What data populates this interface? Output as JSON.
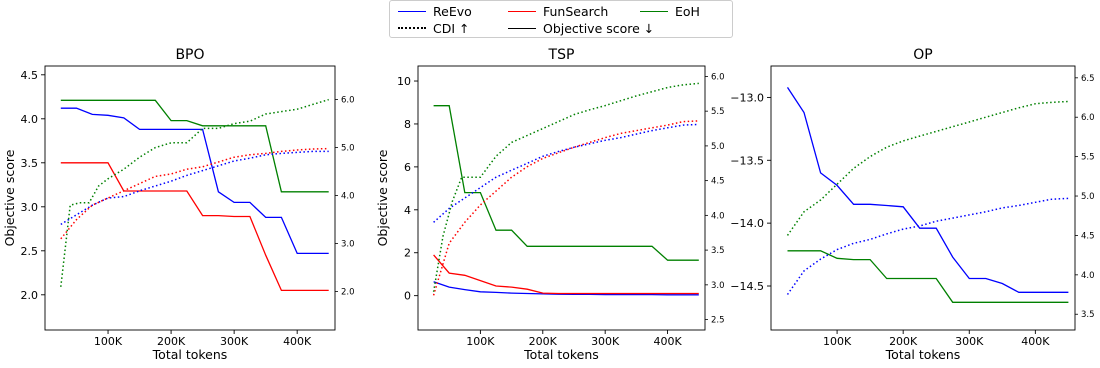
{
  "legend": {
    "entries": [
      {
        "label": "ReEvo",
        "style": "solid",
        "color": "#0000ff"
      },
      {
        "label": "CDI ↑",
        "style": "dotted",
        "color": "#000000"
      },
      {
        "label": "FunSearch",
        "style": "solid",
        "color": "#ff0000"
      },
      {
        "label": "Objective score ↓",
        "style": "solid",
        "color": "#000000"
      },
      {
        "label": "EoH",
        "style": "solid",
        "color": "#008000"
      }
    ]
  },
  "colors": {
    "ReEvo": "#0000ff",
    "FunSearch": "#ff0000",
    "EoH": "#008000"
  },
  "chart_data": [
    {
      "type": "line",
      "title": "BPO",
      "xlabel": "Total tokens",
      "ylabel": "Objective score",
      "xlim": [
        0,
        460000
      ],
      "ylim": [
        1.6,
        4.6
      ],
      "y2lim": [
        1.2,
        6.7
      ],
      "xticks": [
        {
          "v": 100000,
          "label": "100K"
        },
        {
          "v": 200000,
          "label": "200K"
        },
        {
          "v": 300000,
          "label": "300K"
        },
        {
          "v": 400000,
          "label": "400K"
        }
      ],
      "yticks": [
        {
          "v": 2.0,
          "label": "2.0"
        },
        {
          "v": 2.5,
          "label": "2.5"
        },
        {
          "v": 3.0,
          "label": "3.0"
        },
        {
          "v": 3.5,
          "label": "3.5"
        },
        {
          "v": 4.0,
          "label": "4.0"
        },
        {
          "v": 4.5,
          "label": "4.5"
        }
      ],
      "y2ticks": [
        {
          "v": 2.0,
          "label": "2.0"
        },
        {
          "v": 3.0,
          "label": "3.0"
        },
        {
          "v": 4.0,
          "label": "4.0"
        },
        {
          "v": 5.0,
          "label": "5.0"
        },
        {
          "v": 6.0,
          "label": "6.0"
        }
      ],
      "series": [
        {
          "name": "ReEvo",
          "axis": "left",
          "style": "solid",
          "color": "#0000ff",
          "x": [
            25000,
            50000,
            75000,
            100000,
            125000,
            150000,
            175000,
            200000,
            225000,
            250000,
            275000,
            300000,
            325000,
            350000,
            375000,
            400000,
            425000,
            450000
          ],
          "y": [
            4.12,
            4.12,
            4.05,
            4.04,
            4.01,
            3.88,
            3.88,
            3.88,
            3.88,
            3.88,
            3.17,
            3.05,
            3.05,
            2.88,
            2.88,
            2.47,
            2.47,
            2.47
          ]
        },
        {
          "name": "FunSearch",
          "axis": "left",
          "style": "solid",
          "color": "#ff0000",
          "x": [
            25000,
            50000,
            75000,
            100000,
            125000,
            150000,
            175000,
            200000,
            225000,
            250000,
            275000,
            300000,
            325000,
            350000,
            375000,
            400000,
            425000,
            450000
          ],
          "y": [
            3.5,
            3.5,
            3.5,
            3.5,
            3.18,
            3.18,
            3.18,
            3.18,
            3.18,
            2.9,
            2.9,
            2.89,
            2.89,
            2.45,
            2.05,
            2.05,
            2.05,
            2.05
          ]
        },
        {
          "name": "EoH",
          "axis": "left",
          "style": "solid",
          "color": "#008000",
          "x": [
            25000,
            50000,
            75000,
            100000,
            125000,
            150000,
            175000,
            200000,
            225000,
            250000,
            275000,
            300000,
            325000,
            350000,
            375000,
            400000,
            425000,
            450000
          ],
          "y": [
            4.21,
            4.21,
            4.21,
            4.21,
            4.21,
            4.21,
            4.21,
            3.98,
            3.98,
            3.92,
            3.92,
            3.92,
            3.92,
            3.92,
            3.17,
            3.17,
            3.17,
            3.17
          ]
        },
        {
          "name": "ReEvo",
          "axis": "right",
          "style": "dotted",
          "color": "#0000ff",
          "x": [
            25000,
            50000,
            75000,
            100000,
            125000,
            150000,
            175000,
            200000,
            225000,
            250000,
            275000,
            300000,
            325000,
            350000,
            375000,
            400000,
            425000,
            450000
          ],
          "y": [
            3.4,
            3.6,
            3.8,
            3.95,
            3.98,
            4.1,
            4.2,
            4.3,
            4.42,
            4.52,
            4.62,
            4.72,
            4.78,
            4.85,
            4.88,
            4.9,
            4.92,
            4.92
          ]
        },
        {
          "name": "FunSearch",
          "axis": "right",
          "style": "dotted",
          "color": "#ff0000",
          "x": [
            25000,
            50000,
            75000,
            100000,
            125000,
            150000,
            175000,
            200000,
            225000,
            250000,
            275000,
            300000,
            325000,
            350000,
            375000,
            400000,
            425000,
            450000
          ],
          "y": [
            3.1,
            3.5,
            3.8,
            3.95,
            4.1,
            4.25,
            4.4,
            4.45,
            4.55,
            4.6,
            4.7,
            4.8,
            4.85,
            4.88,
            4.92,
            4.95,
            4.97,
            4.98
          ]
        },
        {
          "name": "EoH",
          "axis": "right",
          "style": "dotted",
          "color": "#008000",
          "x": [
            25000,
            40000,
            55000,
            70000,
            85000,
            100000,
            125000,
            150000,
            175000,
            200000,
            225000,
            250000,
            275000,
            300000,
            325000,
            350000,
            375000,
            400000,
            425000,
            450000
          ],
          "y": [
            2.1,
            3.8,
            3.85,
            3.85,
            4.2,
            4.35,
            4.55,
            4.8,
            5.0,
            5.1,
            5.1,
            5.4,
            5.4,
            5.5,
            5.55,
            5.7,
            5.75,
            5.8,
            5.9,
            6.0
          ]
        }
      ]
    },
    {
      "type": "line",
      "title": "TSP",
      "xlabel": "Total tokens",
      "ylabel": "Objective score",
      "xlim": [
        0,
        460000
      ],
      "ylim": [
        -1.6,
        10.7
      ],
      "y2lim": [
        2.35,
        6.15
      ],
      "xticks": [
        {
          "v": 100000,
          "label": "100K"
        },
        {
          "v": 200000,
          "label": "200K"
        },
        {
          "v": 300000,
          "label": "300K"
        },
        {
          "v": 400000,
          "label": "400K"
        }
      ],
      "yticks": [
        {
          "v": 0,
          "label": "0"
        },
        {
          "v": 2,
          "label": "2"
        },
        {
          "v": 4,
          "label": "4"
        },
        {
          "v": 6,
          "label": "6"
        },
        {
          "v": 8,
          "label": "8"
        },
        {
          "v": 10,
          "label": "10"
        }
      ],
      "y2ticks": [
        {
          "v": 2.5,
          "label": "2.5"
        },
        {
          "v": 3.0,
          "label": "3.0"
        },
        {
          "v": 3.5,
          "label": "3.5"
        },
        {
          "v": 4.0,
          "label": "4.0"
        },
        {
          "v": 4.5,
          "label": "4.5"
        },
        {
          "v": 5.0,
          "label": "5.0"
        },
        {
          "v": 5.5,
          "label": "5.5"
        },
        {
          "v": 6.0,
          "label": "6.0"
        }
      ],
      "series": [
        {
          "name": "ReEvo",
          "axis": "left",
          "style": "solid",
          "color": "#0000ff",
          "x": [
            25000,
            50000,
            75000,
            100000,
            125000,
            150000,
            175000,
            200000,
            225000,
            250000,
            275000,
            300000,
            325000,
            350000,
            375000,
            400000,
            425000,
            450000
          ],
          "y": [
            0.65,
            0.4,
            0.28,
            0.18,
            0.15,
            0.12,
            0.1,
            0.08,
            0.07,
            0.06,
            0.06,
            0.05,
            0.05,
            0.05,
            0.05,
            0.04,
            0.04,
            0.04
          ]
        },
        {
          "name": "FunSearch",
          "axis": "left",
          "style": "solid",
          "color": "#ff0000",
          "x": [
            25000,
            50000,
            75000,
            100000,
            125000,
            150000,
            175000,
            200000,
            225000,
            250000,
            275000,
            300000,
            325000,
            350000,
            375000,
            400000,
            425000,
            450000
          ],
          "y": [
            1.9,
            1.05,
            0.95,
            0.7,
            0.45,
            0.4,
            0.3,
            0.12,
            0.1,
            0.1,
            0.1,
            0.1,
            0.1,
            0.1,
            0.1,
            0.1,
            0.1,
            0.1
          ]
        },
        {
          "name": "EoH",
          "axis": "left",
          "style": "solid",
          "color": "#008000",
          "x": [
            25000,
            50000,
            75000,
            100000,
            125000,
            150000,
            175000,
            200000,
            225000,
            250000,
            275000,
            300000,
            325000,
            350000,
            375000,
            400000,
            425000,
            450000
          ],
          "y": [
            8.85,
            8.85,
            4.8,
            4.8,
            3.05,
            3.05,
            2.3,
            2.3,
            2.3,
            2.3,
            2.3,
            2.3,
            2.3,
            2.3,
            2.3,
            1.65,
            1.65,
            1.65
          ]
        },
        {
          "name": "ReEvo",
          "axis": "right",
          "style": "dotted",
          "color": "#0000ff",
          "x": [
            25000,
            50000,
            75000,
            100000,
            125000,
            150000,
            175000,
            200000,
            225000,
            250000,
            275000,
            300000,
            325000,
            350000,
            375000,
            400000,
            425000,
            450000
          ],
          "y": [
            3.9,
            4.1,
            4.25,
            4.4,
            4.55,
            4.65,
            4.75,
            4.85,
            4.92,
            4.98,
            5.03,
            5.08,
            5.12,
            5.17,
            5.22,
            5.26,
            5.3,
            5.31
          ]
        },
        {
          "name": "FunSearch",
          "axis": "right",
          "style": "dotted",
          "color": "#ff0000",
          "x": [
            25000,
            50000,
            75000,
            100000,
            125000,
            150000,
            175000,
            200000,
            225000,
            250000,
            275000,
            300000,
            325000,
            350000,
            375000,
            400000,
            425000,
            450000
          ],
          "y": [
            2.85,
            3.6,
            3.9,
            4.15,
            4.35,
            4.55,
            4.7,
            4.82,
            4.9,
            4.98,
            5.05,
            5.12,
            5.18,
            5.22,
            5.26,
            5.3,
            5.35,
            5.36
          ]
        },
        {
          "name": "EoH",
          "axis": "right",
          "style": "dotted",
          "color": "#008000",
          "x": [
            25000,
            40000,
            55000,
            70000,
            85000,
            100000,
            125000,
            150000,
            175000,
            200000,
            225000,
            250000,
            275000,
            300000,
            325000,
            350000,
            375000,
            400000,
            425000,
            450000
          ],
          "y": [
            2.9,
            3.7,
            4.2,
            4.55,
            4.55,
            4.55,
            4.85,
            5.05,
            5.15,
            5.25,
            5.35,
            5.45,
            5.52,
            5.58,
            5.65,
            5.72,
            5.78,
            5.84,
            5.88,
            5.9
          ]
        }
      ]
    },
    {
      "type": "line",
      "title": "OP",
      "xlabel": "Total tokens",
      "ylabel": "",
      "xlim": [
        0,
        460000
      ],
      "ylim": [
        -14.85,
        -12.75
      ],
      "y2lim": [
        3.3,
        6.65
      ],
      "xticks": [
        {
          "v": 100000,
          "label": "100K"
        },
        {
          "v": 200000,
          "label": "200K"
        },
        {
          "v": 300000,
          "label": "300K"
        },
        {
          "v": 400000,
          "label": "400K"
        }
      ],
      "yticks": [
        {
          "v": -14.5,
          "label": "−14.5"
        },
        {
          "v": -14.0,
          "label": "−14.0"
        },
        {
          "v": -13.5,
          "label": "−13.5"
        },
        {
          "v": -13.0,
          "label": "−13.0"
        }
      ],
      "y2ticks": [
        {
          "v": 3.5,
          "label": "3.5"
        },
        {
          "v": 4.0,
          "label": "4.0"
        },
        {
          "v": 4.5,
          "label": "4.5"
        },
        {
          "v": 5.0,
          "label": "5.0"
        },
        {
          "v": 5.5,
          "label": "5.5"
        },
        {
          "v": 6.0,
          "label": "6.0"
        },
        {
          "v": 6.5,
          "label": "6.5"
        }
      ],
      "series": [
        {
          "name": "ReEvo",
          "axis": "left",
          "style": "solid",
          "color": "#0000ff",
          "x": [
            25000,
            50000,
            75000,
            100000,
            125000,
            150000,
            175000,
            200000,
            225000,
            250000,
            275000,
            300000,
            325000,
            350000,
            375000,
            400000,
            425000,
            450000
          ],
          "y": [
            -12.92,
            -13.12,
            -13.6,
            -13.7,
            -13.85,
            -13.85,
            -13.86,
            -13.87,
            -14.04,
            -14.04,
            -14.27,
            -14.44,
            -14.44,
            -14.48,
            -14.55,
            -14.55,
            -14.55,
            -14.55
          ]
        },
        {
          "name": "EoH",
          "axis": "left",
          "style": "solid",
          "color": "#008000",
          "x": [
            25000,
            50000,
            75000,
            100000,
            125000,
            150000,
            175000,
            200000,
            225000,
            250000,
            275000,
            300000,
            325000,
            350000,
            375000,
            400000,
            425000,
            450000
          ],
          "y": [
            -14.22,
            -14.22,
            -14.22,
            -14.28,
            -14.29,
            -14.29,
            -14.44,
            -14.44,
            -14.44,
            -14.44,
            -14.63,
            -14.63,
            -14.63,
            -14.63,
            -14.63,
            -14.63,
            -14.63,
            -14.63
          ]
        },
        {
          "name": "ReEvo",
          "axis": "right",
          "style": "dotted",
          "color": "#0000ff",
          "x": [
            25000,
            50000,
            75000,
            100000,
            125000,
            150000,
            175000,
            200000,
            225000,
            250000,
            275000,
            300000,
            325000,
            350000,
            375000,
            400000,
            425000,
            450000
          ],
          "y": [
            3.75,
            4.05,
            4.2,
            4.32,
            4.4,
            4.45,
            4.52,
            4.58,
            4.62,
            4.68,
            4.72,
            4.76,
            4.8,
            4.85,
            4.88,
            4.92,
            4.96,
            4.97
          ]
        },
        {
          "name": "EoH",
          "axis": "right",
          "style": "dotted",
          "color": "#008000",
          "x": [
            25000,
            50000,
            75000,
            100000,
            125000,
            150000,
            175000,
            200000,
            225000,
            250000,
            275000,
            300000,
            325000,
            350000,
            375000,
            400000,
            425000,
            450000
          ],
          "y": [
            4.5,
            4.8,
            4.95,
            5.15,
            5.35,
            5.5,
            5.62,
            5.7,
            5.76,
            5.82,
            5.88,
            5.94,
            6.0,
            6.06,
            6.12,
            6.17,
            6.19,
            6.2
          ]
        }
      ]
    }
  ]
}
